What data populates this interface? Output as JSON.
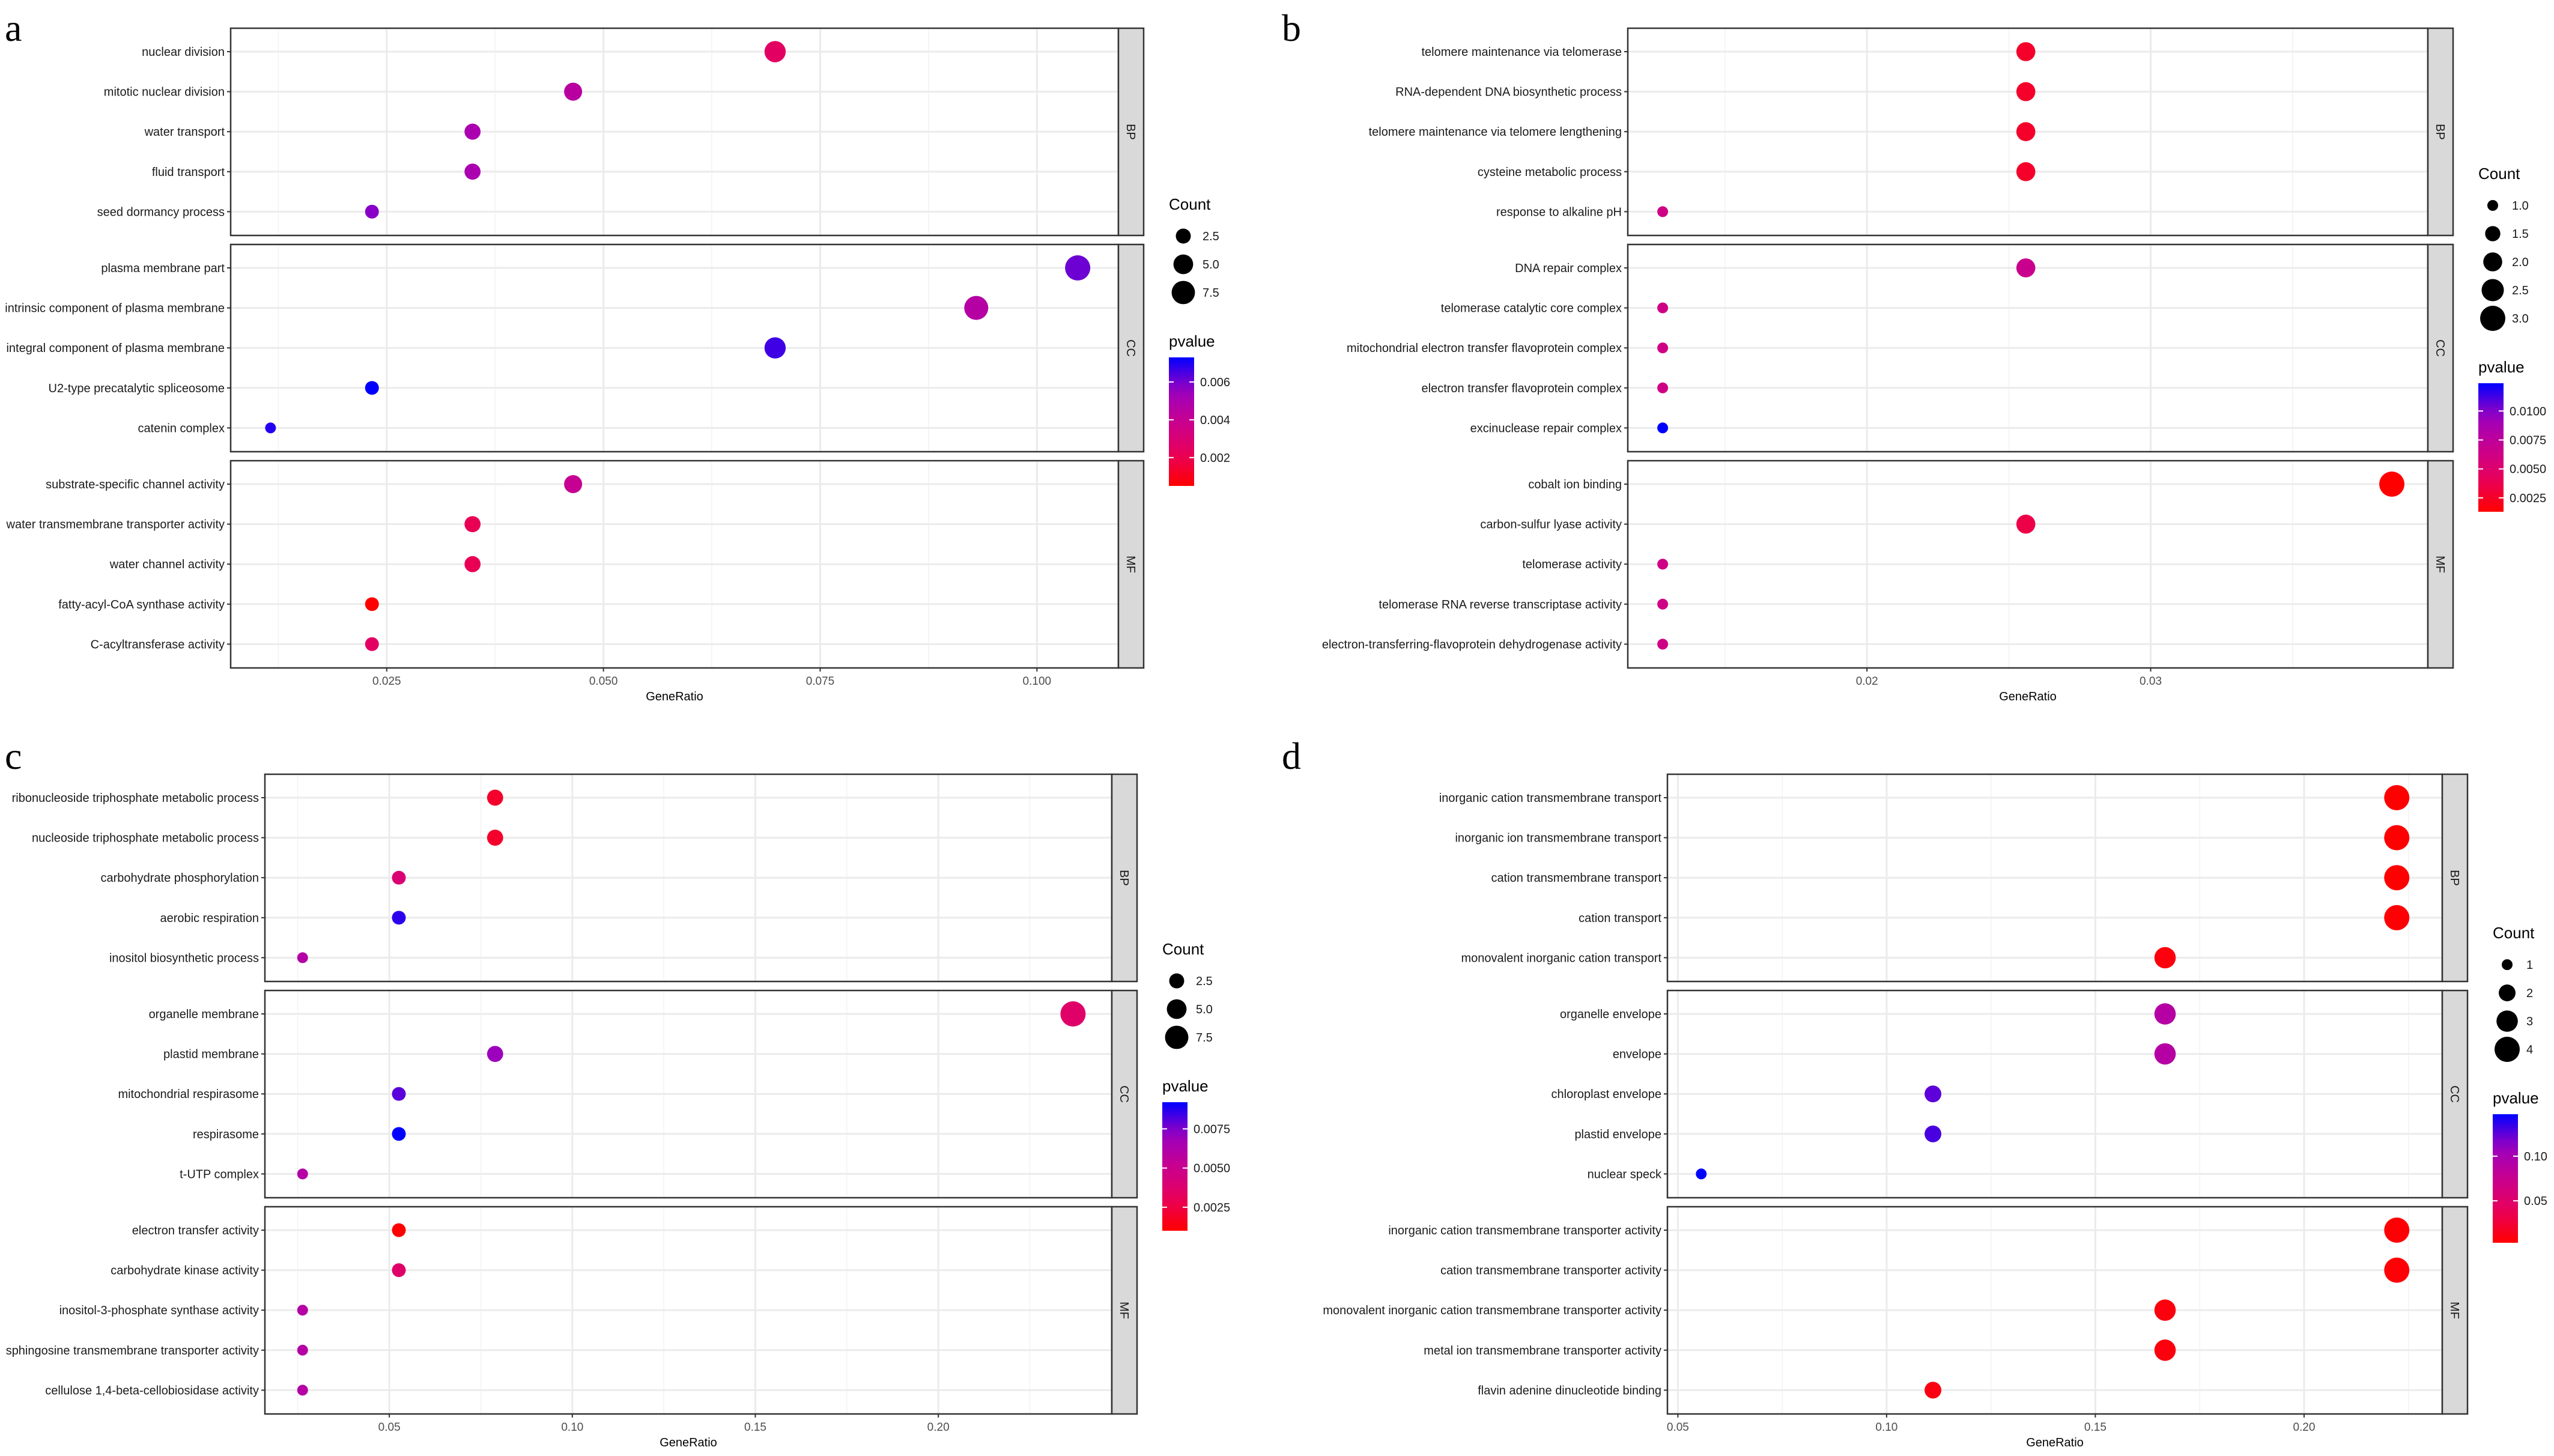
{
  "chart_data": [
    {
      "type": "scatter",
      "panel_label": "a",
      "xlabel": "GeneRatio",
      "xlim": [
        0.007,
        0.1094
      ],
      "xticks": [
        0.025,
        0.05,
        0.075,
        0.1
      ],
      "xtick_labels": [
        "0.025",
        "0.050",
        "0.075",
        "0.100"
      ],
      "grid": true,
      "legend_position": "right",
      "size_legend": {
        "title": "Count",
        "breaks": [
          "2.5",
          "5.0",
          "7.5"
        ],
        "break_values": [
          2.5,
          5.0,
          7.5
        ]
      },
      "color_legend": {
        "title": "pvalue",
        "breaks": [
          "0.002",
          "0.004",
          "0.006"
        ],
        "break_values": [
          0.002,
          0.004,
          0.006
        ],
        "low_color": "#FF0000",
        "high_color": "#0000FF"
      },
      "facets": [
        {
          "name": "BP",
          "terms": [
            {
              "term": "nuclear division",
              "gene_ratio": 0.0698,
              "count": 6,
              "pvalue": 0.0025
            },
            {
              "term": "mitotic nuclear division",
              "gene_ratio": 0.0465,
              "count": 4,
              "pvalue": 0.0045
            },
            {
              "term": "water transport",
              "gene_ratio": 0.0349,
              "count": 3,
              "pvalue": 0.005
            },
            {
              "term": "fluid transport",
              "gene_ratio": 0.0349,
              "count": 3,
              "pvalue": 0.005
            },
            {
              "term": "seed dormancy process",
              "gene_ratio": 0.0233,
              "count": 2,
              "pvalue": 0.0058
            }
          ]
        },
        {
          "name": "CC",
          "terms": [
            {
              "term": "plasma membrane part",
              "gene_ratio": 0.1047,
              "count": 9,
              "pvalue": 0.0061
            },
            {
              "term": "intrinsic component of plasma membrane",
              "gene_ratio": 0.093,
              "count": 8,
              "pvalue": 0.0046
            },
            {
              "term": "integral component of plasma membrane",
              "gene_ratio": 0.0698,
              "count": 6,
              "pvalue": 0.0066
            },
            {
              "term": "U2-type precatalytic spliceosome",
              "gene_ratio": 0.0233,
              "count": 2,
              "pvalue": 0.0073
            },
            {
              "term": "catenin complex",
              "gene_ratio": 0.0116,
              "count": 1,
              "pvalue": 0.0069
            }
          ]
        },
        {
          "name": "MF",
          "terms": [
            {
              "term": "substrate-specific channel activity",
              "gene_ratio": 0.0465,
              "count": 4,
              "pvalue": 0.004
            },
            {
              "term": "water transmembrane transporter activity",
              "gene_ratio": 0.0349,
              "count": 3,
              "pvalue": 0.0021
            },
            {
              "term": "water channel activity",
              "gene_ratio": 0.0349,
              "count": 3,
              "pvalue": 0.0021
            },
            {
              "term": "fatty-acyl-CoA synthase activity",
              "gene_ratio": 0.0233,
              "count": 2,
              "pvalue": 0.0005
            },
            {
              "term": "C-acyltransferase activity",
              "gene_ratio": 0.0233,
              "count": 2,
              "pvalue": 0.0025
            }
          ]
        }
      ]
    },
    {
      "type": "scatter",
      "panel_label": "b",
      "xlabel": "GeneRatio",
      "xlim": [
        0.01157,
        0.03977
      ],
      "xticks": [
        0.02,
        0.03
      ],
      "xtick_labels": [
        "0.02",
        "0.03"
      ],
      "grid": true,
      "legend_position": "right",
      "size_legend": {
        "title": "Count",
        "breaks": [
          "1.0",
          "1.5",
          "2.0",
          "2.5",
          "3.0"
        ],
        "break_values": [
          1.0,
          1.5,
          2.0,
          2.5,
          3.0
        ]
      },
      "color_legend": {
        "title": "pvalue",
        "breaks": [
          "0.0025",
          "0.0050",
          "0.0075",
          "0.0100"
        ],
        "break_values": [
          0.0025,
          0.005,
          0.0075,
          0.01
        ],
        "low_color": "#FF0000",
        "high_color": "#0000FF"
      },
      "facets": [
        {
          "name": "BP",
          "terms": [
            {
              "term": "telomere maintenance via telomerase",
              "gene_ratio": 0.0256,
              "count": 2,
              "pvalue": 0.0026
            },
            {
              "term": "RNA-dependent DNA biosynthetic process",
              "gene_ratio": 0.0256,
              "count": 2,
              "pvalue": 0.0026
            },
            {
              "term": "telomere maintenance via telomere lengthening",
              "gene_ratio": 0.0256,
              "count": 2,
              "pvalue": 0.0026
            },
            {
              "term": "cysteine metabolic process",
              "gene_ratio": 0.0256,
              "count": 2,
              "pvalue": 0.0026
            },
            {
              "term": "response to alkaline pH",
              "gene_ratio": 0.0128,
              "count": 1,
              "pvalue": 0.0063
            }
          ]
        },
        {
          "name": "CC",
          "terms": [
            {
              "term": "DNA repair complex",
              "gene_ratio": 0.0256,
              "count": 2,
              "pvalue": 0.0068
            },
            {
              "term": "telomerase catalytic core complex",
              "gene_ratio": 0.0128,
              "count": 1,
              "pvalue": 0.0063
            },
            {
              "term": "mitochondrial electron transfer flavoprotein complex",
              "gene_ratio": 0.0128,
              "count": 1,
              "pvalue": 0.0063
            },
            {
              "term": "electron transfer flavoprotein complex",
              "gene_ratio": 0.0128,
              "count": 1,
              "pvalue": 0.0063
            },
            {
              "term": "excinuclease repair complex",
              "gene_ratio": 0.0128,
              "count": 1,
              "pvalue": 0.0124
            }
          ]
        },
        {
          "name": "MF",
          "terms": [
            {
              "term": "cobalt ion binding",
              "gene_ratio": 0.0385,
              "count": 3,
              "pvalue": 0.0013
            },
            {
              "term": "carbon-sulfur lyase activity",
              "gene_ratio": 0.0256,
              "count": 2,
              "pvalue": 0.0035
            },
            {
              "term": "telomerase activity",
              "gene_ratio": 0.0128,
              "count": 1,
              "pvalue": 0.0063
            },
            {
              "term": "telomerase RNA reverse transcriptase activity",
              "gene_ratio": 0.0128,
              "count": 1,
              "pvalue": 0.0063
            },
            {
              "term": "electron-transferring-flavoprotein dehydrogenase activity",
              "gene_ratio": 0.0128,
              "count": 1,
              "pvalue": 0.0063
            }
          ]
        }
      ]
    },
    {
      "type": "scatter",
      "panel_label": "c",
      "xlabel": "GeneRatio",
      "xlim": [
        0.016,
        0.2474
      ],
      "xticks": [
        0.05,
        0.1,
        0.15,
        0.2
      ],
      "xtick_labels": [
        "0.05",
        "0.10",
        "0.15",
        "0.20"
      ],
      "grid": true,
      "legend_position": "right",
      "size_legend": {
        "title": "Count",
        "breaks": [
          "2.5",
          "5.0",
          "7.5"
        ],
        "break_values": [
          2.5,
          5.0,
          7.5
        ]
      },
      "color_legend": {
        "title": "pvalue",
        "breaks": [
          "0.0025",
          "0.0050",
          "0.0075"
        ],
        "break_values": [
          0.0025,
          0.005,
          0.0075
        ],
        "low_color": "#FF0000",
        "high_color": "#0000FF"
      },
      "facets": [
        {
          "name": "BP",
          "terms": [
            {
              "term": "ribonucleoside triphosphate metabolic process",
              "gene_ratio": 0.0789,
              "count": 3,
              "pvalue": 0.002
            },
            {
              "term": "nucleoside triphosphate metabolic process",
              "gene_ratio": 0.0789,
              "count": 3,
              "pvalue": 0.002
            },
            {
              "term": "carbohydrate phosphorylation",
              "gene_ratio": 0.0526,
              "count": 2,
              "pvalue": 0.004
            },
            {
              "term": "aerobic respiration",
              "gene_ratio": 0.0526,
              "count": 2,
              "pvalue": 0.0086
            },
            {
              "term": "inositol biosynthetic process",
              "gene_ratio": 0.0263,
              "count": 1,
              "pvalue": 0.006
            }
          ]
        },
        {
          "name": "CC",
          "terms": [
            {
              "term": "organelle membrane",
              "gene_ratio": 0.2368,
              "count": 9,
              "pvalue": 0.0036
            },
            {
              "term": "plastid membrane",
              "gene_ratio": 0.0789,
              "count": 3,
              "pvalue": 0.007
            },
            {
              "term": "mitochondrial respirasome",
              "gene_ratio": 0.0526,
              "count": 2,
              "pvalue": 0.008
            },
            {
              "term": "respirasome",
              "gene_ratio": 0.0526,
              "count": 2,
              "pvalue": 0.0092
            },
            {
              "term": "t-UTP complex",
              "gene_ratio": 0.0263,
              "count": 1,
              "pvalue": 0.006
            }
          ]
        },
        {
          "name": "MF",
          "terms": [
            {
              "term": "electron transfer activity",
              "gene_ratio": 0.0526,
              "count": 2,
              "pvalue": 0.001
            },
            {
              "term": "carbohydrate kinase activity",
              "gene_ratio": 0.0526,
              "count": 2,
              "pvalue": 0.0036
            },
            {
              "term": "inositol-3-phosphate synthase activity",
              "gene_ratio": 0.0263,
              "count": 1,
              "pvalue": 0.006
            },
            {
              "term": "sphingosine transmembrane transporter activity",
              "gene_ratio": 0.0263,
              "count": 1,
              "pvalue": 0.006
            },
            {
              "term": "cellulose 1,4-beta-cellobiosidase activity",
              "gene_ratio": 0.0263,
              "count": 1,
              "pvalue": 0.006
            }
          ]
        }
      ]
    },
    {
      "type": "scatter",
      "panel_label": "d",
      "xlabel": "GeneRatio",
      "xlim": [
        0.0475,
        0.2331
      ],
      "xticks": [
        0.05,
        0.1,
        0.15,
        0.2
      ],
      "xtick_labels": [
        "0.05",
        "0.10",
        "0.15",
        "0.20"
      ],
      "grid": true,
      "legend_position": "right",
      "size_legend": {
        "title": "Count",
        "breaks": [
          "1",
          "2",
          "3",
          "4"
        ],
        "break_values": [
          1,
          2,
          3,
          4
        ]
      },
      "color_legend": {
        "title": "pvalue",
        "breaks": [
          "0.05",
          "0.10"
        ],
        "break_values": [
          0.05,
          0.1
        ],
        "low_color": "#FF0000",
        "high_color": "#0000FF"
      },
      "facets": [
        {
          "name": "BP",
          "terms": [
            {
              "term": "inorganic cation transmembrane transport",
              "gene_ratio": 0.2222,
              "count": 4,
              "pvalue": 0.003
            },
            {
              "term": "inorganic ion transmembrane transport",
              "gene_ratio": 0.2222,
              "count": 4,
              "pvalue": 0.003
            },
            {
              "term": "cation transmembrane transport",
              "gene_ratio": 0.2222,
              "count": 4,
              "pvalue": 0.003
            },
            {
              "term": "cation transport",
              "gene_ratio": 0.2222,
              "count": 4,
              "pvalue": 0.004
            },
            {
              "term": "monovalent inorganic cation transport",
              "gene_ratio": 0.1667,
              "count": 3,
              "pvalue": 0.008
            }
          ]
        },
        {
          "name": "CC",
          "terms": [
            {
              "term": "organelle envelope",
              "gene_ratio": 0.1667,
              "count": 3,
              "pvalue": 0.09
            },
            {
              "term": "envelope",
              "gene_ratio": 0.1667,
              "count": 3,
              "pvalue": 0.09
            },
            {
              "term": "chloroplast envelope",
              "gene_ratio": 0.1111,
              "count": 2,
              "pvalue": 0.125
            },
            {
              "term": "plastid envelope",
              "gene_ratio": 0.1111,
              "count": 2,
              "pvalue": 0.13
            },
            {
              "term": "nuclear speck",
              "gene_ratio": 0.0556,
              "count": 1,
              "pvalue": 0.147
            }
          ]
        },
        {
          "name": "MF",
          "terms": [
            {
              "term": "inorganic cation transmembrane transporter activity",
              "gene_ratio": 0.2222,
              "count": 4,
              "pvalue": 0.004
            },
            {
              "term": "cation transmembrane transporter activity",
              "gene_ratio": 0.2222,
              "count": 4,
              "pvalue": 0.005
            },
            {
              "term": "monovalent inorganic cation transmembrane transporter activity",
              "gene_ratio": 0.1667,
              "count": 3,
              "pvalue": 0.008
            },
            {
              "term": "metal ion transmembrane transporter activity",
              "gene_ratio": 0.1667,
              "count": 3,
              "pvalue": 0.008
            },
            {
              "term": "flavin adenine dinucleotide binding",
              "gene_ratio": 0.1111,
              "count": 2,
              "pvalue": 0.01
            }
          ]
        }
      ]
    }
  ]
}
